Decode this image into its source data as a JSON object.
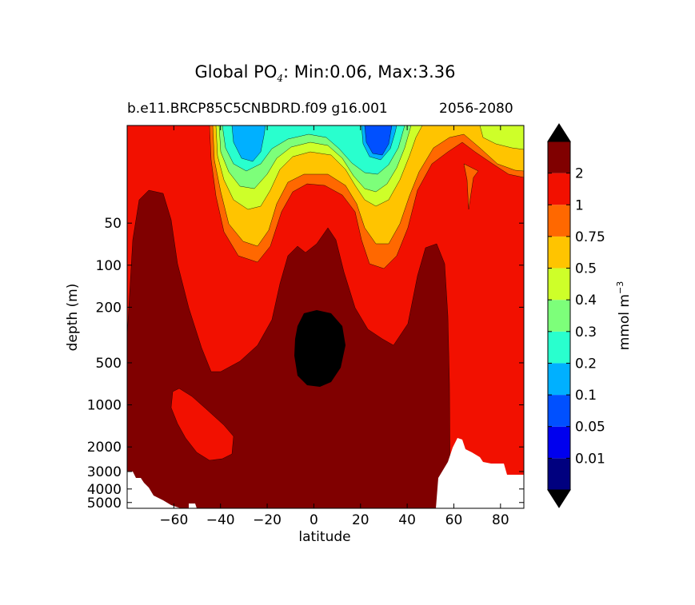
{
  "title": {
    "prefix": "Global PO",
    "subscript": "4",
    "suffix": ": Min:0.06, Max:3.36"
  },
  "subtitle_left": "b.e11.BRCP85C5CNBDRD.f09 g16.001",
  "subtitle_right": "2056-2080",
  "chart_data": {
    "type": "contour",
    "xlabel": "latitude",
    "ylabel": "depth (m)",
    "xlim": [
      -80,
      90
    ],
    "ylim": [
      5500,
      10
    ],
    "yscale": "log",
    "x_ticks": [
      -60,
      -40,
      -20,
      0,
      20,
      40,
      60,
      80
    ],
    "x_tick_labels": [
      "−60",
      "−40",
      "−20",
      "0",
      "20",
      "40",
      "60",
      "80"
    ],
    "y_ticks": [
      50,
      100,
      200,
      500,
      1000,
      2000,
      3000,
      4000,
      5000
    ],
    "y_tick_labels": [
      "50",
      "100",
      "200",
      "500",
      "1000",
      "2000",
      "3000",
      "4000",
      "5000"
    ],
    "colorbar": {
      "label_main": "mmol m",
      "label_exponent": "−3",
      "levels": [
        0.01,
        0.05,
        0.1,
        0.2,
        0.3,
        0.4,
        0.5,
        0.75,
        1,
        2
      ],
      "level_labels": [
        "0.01",
        "0.05",
        "0.1",
        "0.2",
        "0.3",
        "0.4",
        "0.5",
        "0.75",
        "1",
        "2"
      ],
      "colors": [
        "#00007f",
        "#0000ee",
        "#0050ff",
        "#00b0ff",
        "#29ffce",
        "#7dff7a",
        "#ceff29",
        "#ffc400",
        "#ff6800",
        "#f21000",
        "#800000"
      ],
      "extend": "both",
      "over_color": "#000000",
      "under_color": "#000000"
    },
    "region_values": {
      "background_upper": 1.5,
      "deep_max": 2.5,
      "core_over": 3.36,
      "southern_tongue": 1.5,
      "surface_min": 0.06
    },
    "min": 0.06,
    "max": 3.36
  }
}
